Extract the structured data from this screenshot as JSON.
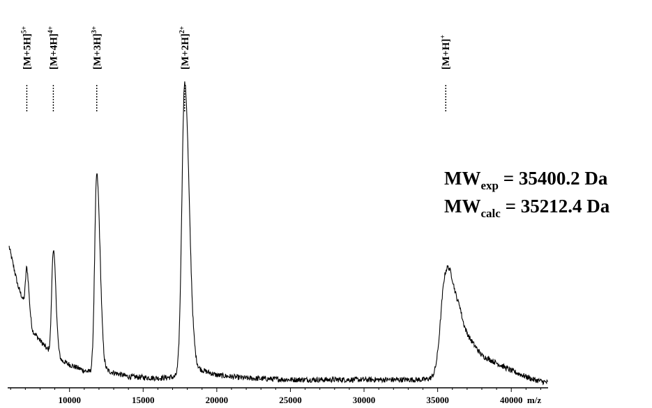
{
  "chart_data": {
    "type": "line",
    "title": "",
    "xlabel": "m/z",
    "ylabel": "",
    "xlim": [
      5800,
      42500
    ],
    "ylim": [
      0,
      1
    ],
    "x_ticks": [
      10000,
      15000,
      20000,
      25000,
      30000,
      35000,
      40000
    ],
    "x_tick_labels": [
      "10000",
      "15000",
      "20000",
      "25000",
      "30000",
      "35000",
      "40000"
    ],
    "grid": false,
    "y_axis_visible": false,
    "series": [
      {
        "description_units": "relative intensity (0-1), approximate",
        "baseline": [
          [
            5900,
            0.46
          ],
          [
            6500,
            0.33
          ],
          [
            7100,
            0.25
          ],
          [
            7500,
            0.18
          ],
          [
            8500,
            0.12
          ],
          [
            9200,
            0.09
          ],
          [
            10000,
            0.07
          ],
          [
            11000,
            0.05
          ],
          [
            11800,
            0.04
          ],
          [
            12500,
            0.05
          ],
          [
            14000,
            0.03
          ],
          [
            16000,
            0.025
          ],
          [
            17500,
            0.03
          ],
          [
            18500,
            0.06
          ],
          [
            20000,
            0.035
          ],
          [
            22000,
            0.025
          ],
          [
            25000,
            0.02
          ],
          [
            30000,
            0.02
          ],
          [
            34000,
            0.02
          ],
          [
            35500,
            0.03
          ],
          [
            36500,
            0.2
          ],
          [
            38000,
            0.1
          ],
          [
            40000,
            0.05
          ],
          [
            41500,
            0.02
          ],
          [
            42500,
            0.01
          ]
        ],
        "peaks": [
          {
            "x": 7100,
            "y": 0.39,
            "width": 90
          },
          {
            "x": 8900,
            "y": 0.45,
            "width": 110
          },
          {
            "x": 11850,
            "y": 0.7,
            "width": 140
          },
          {
            "x": 17820,
            "y": 1.0,
            "width": 190
          },
          {
            "x": 35550,
            "y": 0.38,
            "width": 330
          }
        ]
      }
    ],
    "annotations": [
      {
        "label": "[M+5H]",
        "charge": "5+",
        "x": 7100
      },
      {
        "label": "[M+4H]",
        "charge": "4+",
        "x": 8900
      },
      {
        "label": "[M+3H]",
        "charge": "3+",
        "x": 11850
      },
      {
        "label": "[M+2H]",
        "charge": "2+",
        "x": 17820
      },
      {
        "label": "[M+H]",
        "charge": "+",
        "x": 35550
      }
    ]
  },
  "mw": {
    "exp_main": "MW",
    "exp_sub": "exp",
    "exp_value": "= 35400.2 Da",
    "calc_main": "MW",
    "calc_sub": "calc",
    "calc_value": "= 35212.4 Da"
  }
}
